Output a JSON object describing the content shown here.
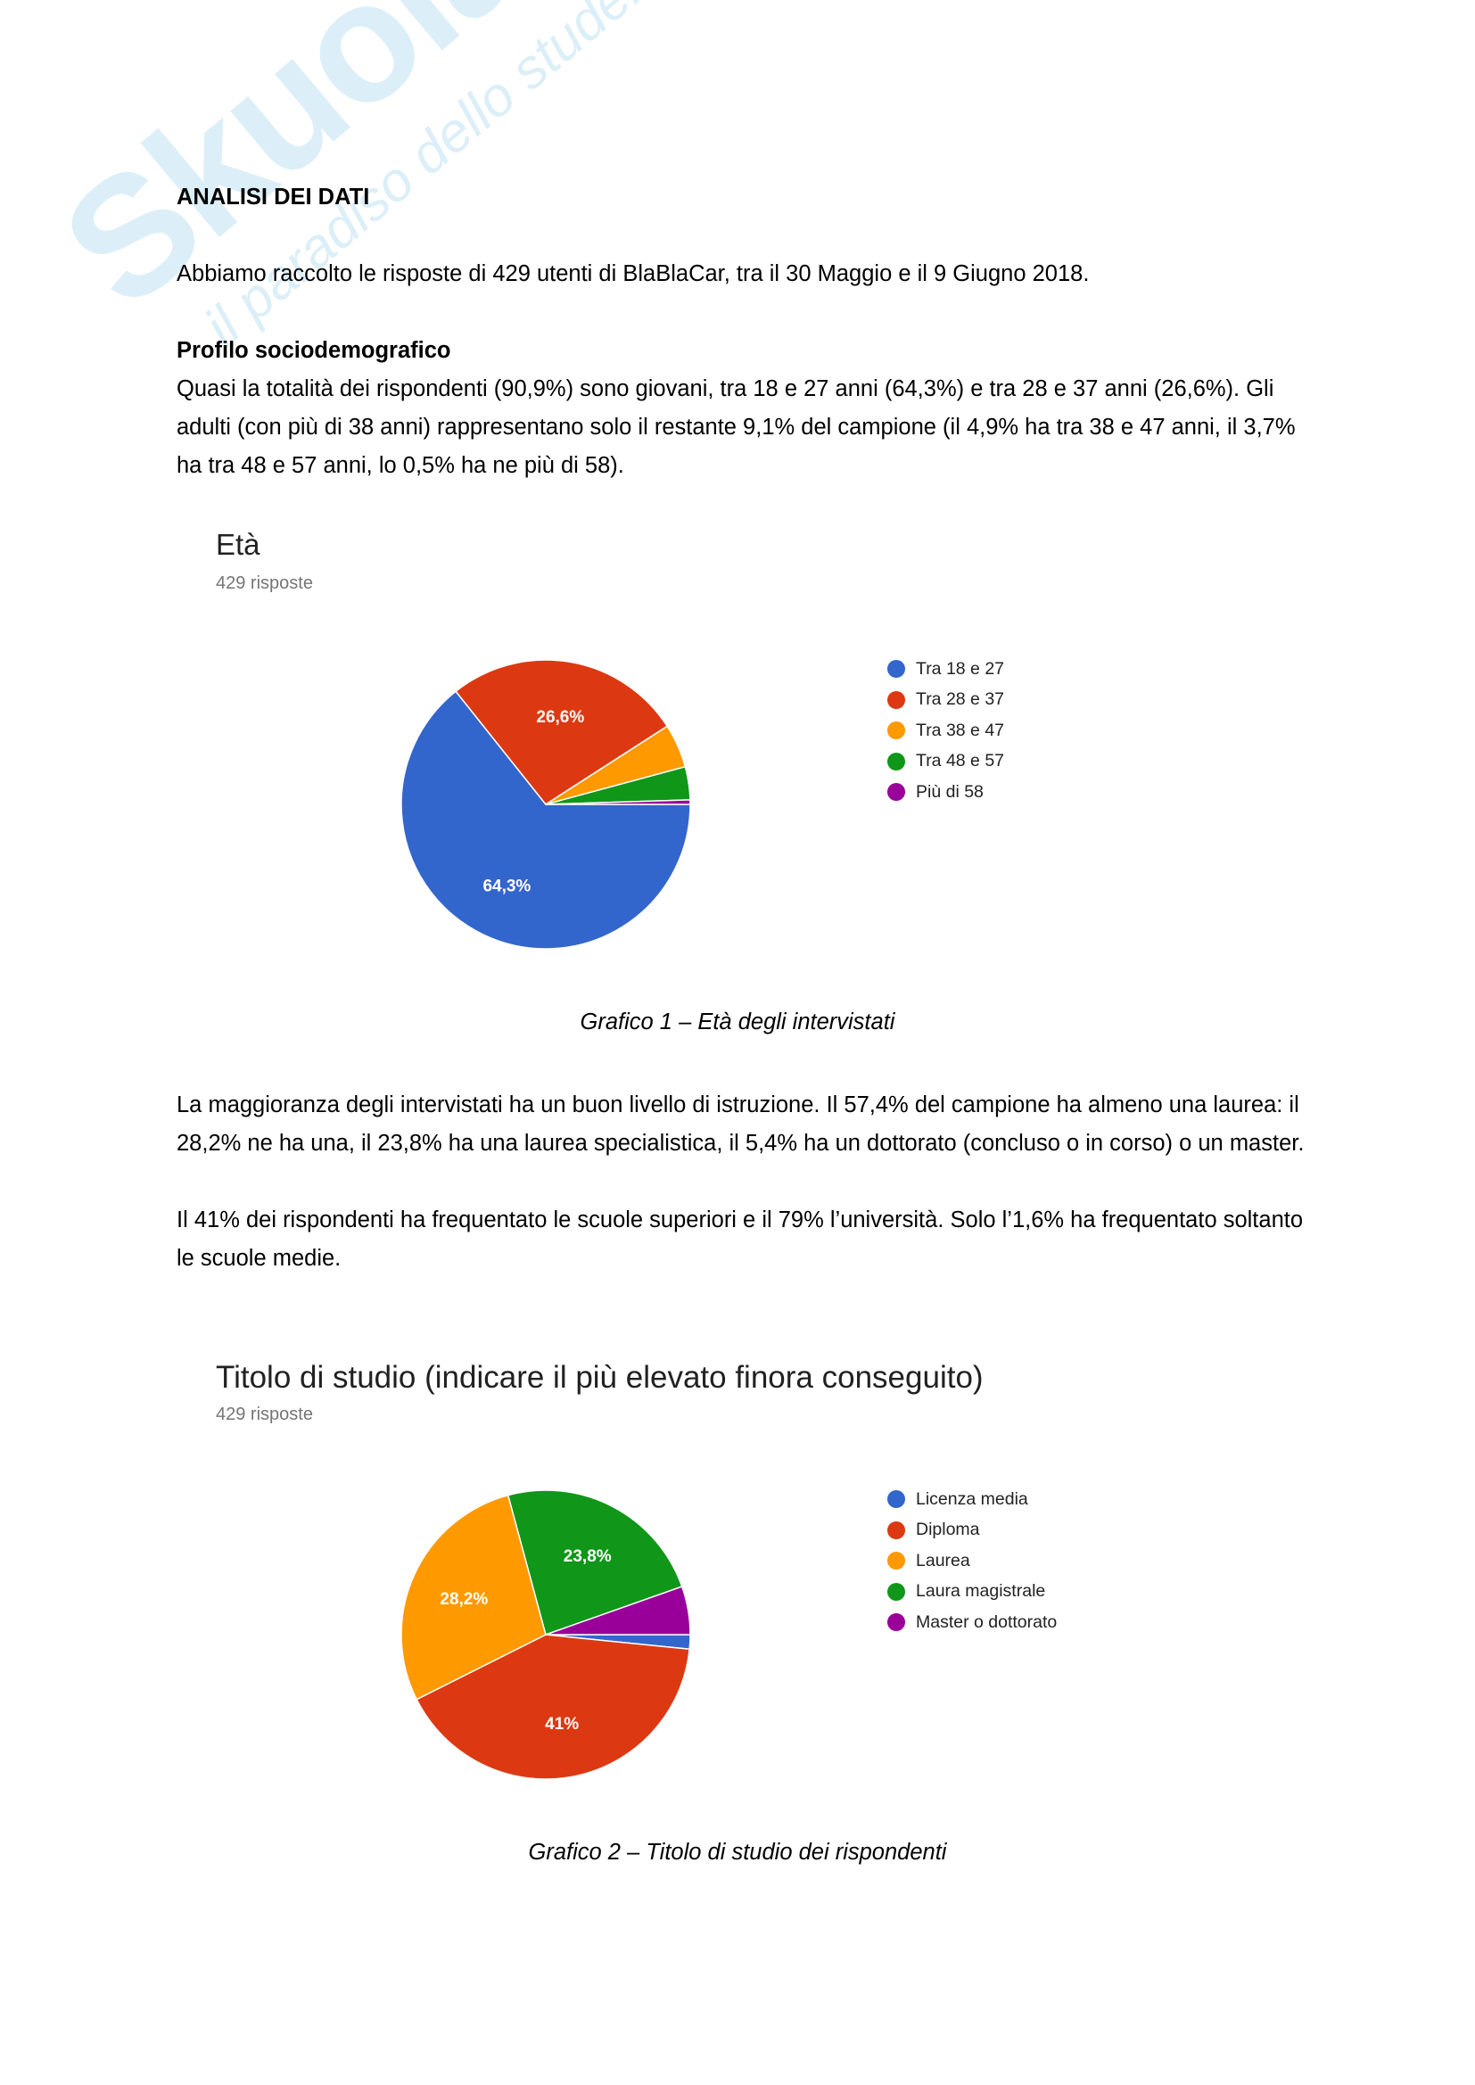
{
  "watermark": {
    "brand": "Skuola.net",
    "tagline": "il paradiso dello studente"
  },
  "heading": "ANALISI DEI DATI",
  "intro": "Abbiamo raccolto le risposte di 429 utenti di BlaBlaCar, tra il 30 Maggio e il 9 Giugno 2018.",
  "section_title": "Profilo sociodemografico",
  "para1": "Quasi la totalità dei rispondenti (90,9%) sono giovani, tra 18 e 27 anni (64,3%) e tra 28 e 37 anni (26,6%). Gli adulti (con più di 38 anni) rappresentano solo il restante 9,1% del campione (il 4,9% ha tra 38 e 47 anni, il 3,7% ha tra 48 e 57 anni, lo 0,5% ha ne più di 58).",
  "caption1": "Grafico 1 – Età degli intervistati",
  "para2a": "La maggioranza degli intervistati ha un buon livello di istruzione. Il 57,4% del campione ha almeno una laurea: il 28,2% ne ha una, il 23,8% ha una laurea specialistica, il 5,4% ha un dottorato (concluso o in corso) o un master.",
  "para2b": "Il 41% dei rispondenti ha frequentato le scuole superiori e il 79% l’università. Solo l’1,6% ha frequentato soltanto le scuole medie.",
  "caption2": "Grafico 2 – Titolo di studio dei rispondenti",
  "chart_data": [
    {
      "type": "pie",
      "title": "Età",
      "subtitle": "429 risposte",
      "categories": [
        "Tra 18 e 27",
        "Tra 28 e 37",
        "Tra 38 e 47",
        "Tra 48 e 57",
        "Più di 58"
      ],
      "values": [
        64.3,
        26.6,
        4.9,
        3.7,
        0.5
      ],
      "data_labels": [
        "64,3%",
        "26,6%",
        "",
        "",
        ""
      ],
      "colors": [
        "#3366cc",
        "#dc3912",
        "#ff9900",
        "#109618",
        "#990099"
      ],
      "legend": "right"
    },
    {
      "type": "pie",
      "title": "Titolo di studio (indicare il più elevato finora conseguito)",
      "subtitle": "429 risposte",
      "categories": [
        "Licenza media",
        "Diploma",
        "Laurea",
        "Laura magistrale",
        "Master o dottorato"
      ],
      "values": [
        1.6,
        41,
        28.2,
        23.8,
        5.4
      ],
      "data_labels": [
        "",
        "41%",
        "28,2%",
        "23,8%",
        ""
      ],
      "colors": [
        "#3366cc",
        "#dc3912",
        "#ff9900",
        "#109618",
        "#990099"
      ],
      "legend": "right"
    }
  ]
}
